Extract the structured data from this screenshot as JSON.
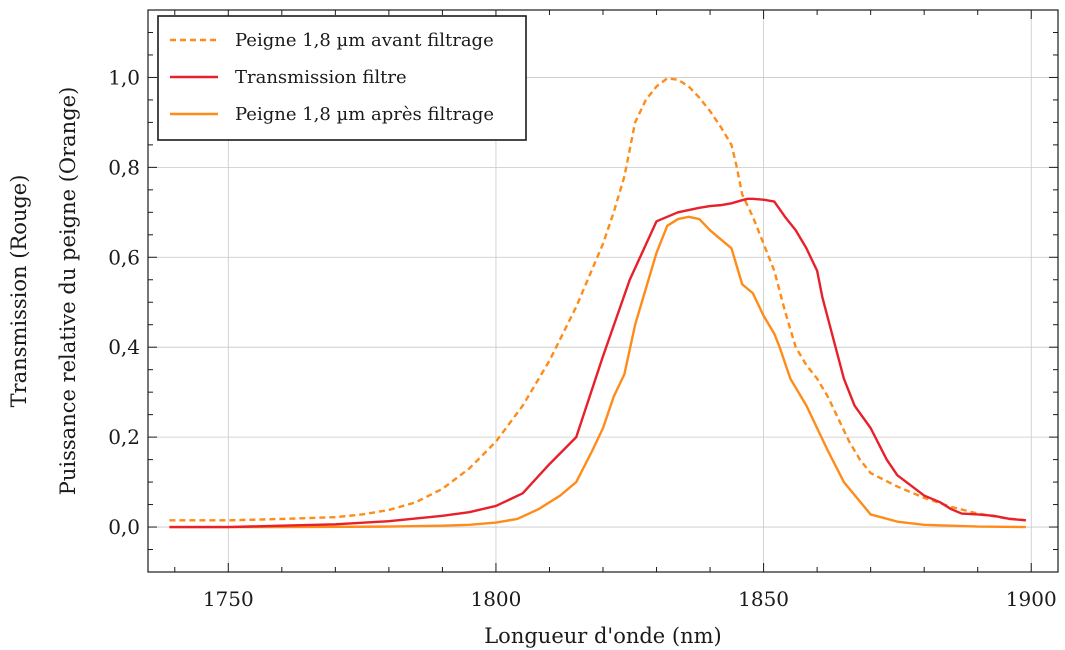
{
  "chart_data": {
    "type": "line",
    "xlabel": "Longueur d'onde (nm)",
    "ylabel_line1": "Transmission (Rouge)",
    "ylabel_line2": "Puissance relative du peigne (Orange)",
    "xlim": [
      1735,
      1905
    ],
    "ylim": [
      -0.1,
      1.15
    ],
    "xticks": [
      1750,
      1800,
      1850,
      1900
    ],
    "xtick_labels": [
      "1750",
      "1800",
      "1850",
      "1900"
    ],
    "yticks": [
      0.0,
      0.2,
      0.4,
      0.6,
      0.8,
      1.0
    ],
    "ytick_labels": [
      "0,0",
      "0,2",
      "0,4",
      "0,6",
      "0,8",
      "1,0"
    ],
    "x_minor_step": 10,
    "y_minor_step": 0.05,
    "grid": true,
    "legend_position": "top-left",
    "series": [
      {
        "name": "Peigne 1,8 µm avant filtrage",
        "color": "#ff8c1a",
        "dash": "dashed",
        "x": [
          1739,
          1750,
          1760,
          1770,
          1775,
          1780,
          1785,
          1790,
          1795,
          1800,
          1805,
          1810,
          1815,
          1820,
          1822,
          1824,
          1826,
          1828,
          1830,
          1832,
          1834,
          1836,
          1838,
          1840,
          1842,
          1844,
          1845,
          1846,
          1848,
          1850,
          1852,
          1854,
          1856,
          1858,
          1860,
          1862,
          1864,
          1866,
          1868,
          1870,
          1875,
          1880,
          1885,
          1890,
          1895,
          1899
        ],
        "y": [
          0.015,
          0.015,
          0.018,
          0.022,
          0.028,
          0.038,
          0.055,
          0.085,
          0.13,
          0.19,
          0.27,
          0.37,
          0.49,
          0.63,
          0.7,
          0.78,
          0.9,
          0.95,
          0.98,
          0.998,
          0.995,
          0.98,
          0.955,
          0.925,
          0.89,
          0.85,
          0.8,
          0.74,
          0.69,
          0.63,
          0.57,
          0.48,
          0.4,
          0.36,
          0.33,
          0.29,
          0.24,
          0.19,
          0.15,
          0.12,
          0.09,
          0.065,
          0.045,
          0.03,
          0.02,
          0.015
        ]
      },
      {
        "name": "Transmission filtre",
        "color": "#e8202a",
        "dash": "solid",
        "x": [
          1739,
          1750,
          1760,
          1770,
          1780,
          1790,
          1795,
          1800,
          1805,
          1810,
          1815,
          1820,
          1825,
          1830,
          1834,
          1838,
          1840,
          1842,
          1844,
          1846,
          1847,
          1848,
          1850,
          1852,
          1854,
          1856,
          1858,
          1860,
          1861,
          1863,
          1865,
          1867,
          1870,
          1873,
          1875,
          1880,
          1883,
          1885,
          1887,
          1890,
          1893,
          1896,
          1899
        ],
        "y": [
          0.0,
          0.0,
          0.003,
          0.006,
          0.013,
          0.025,
          0.033,
          0.047,
          0.075,
          0.14,
          0.2,
          0.38,
          0.55,
          0.68,
          0.7,
          0.71,
          0.714,
          0.716,
          0.72,
          0.727,
          0.73,
          0.73,
          0.728,
          0.724,
          0.69,
          0.66,
          0.62,
          0.57,
          0.51,
          0.42,
          0.33,
          0.27,
          0.22,
          0.15,
          0.115,
          0.07,
          0.055,
          0.04,
          0.03,
          0.028,
          0.025,
          0.018,
          0.015
        ]
      },
      {
        "name": "Peigne 1,8 µm après filtrage",
        "color": "#ff8c1a",
        "dash": "solid",
        "x": [
          1739,
          1760,
          1780,
          1790,
          1795,
          1800,
          1804,
          1808,
          1812,
          1815,
          1818,
          1820,
          1822,
          1824,
          1826,
          1828,
          1830,
          1832,
          1834,
          1836,
          1838,
          1840,
          1842,
          1844,
          1845,
          1846,
          1848,
          1850,
          1852,
          1853,
          1855,
          1858,
          1862,
          1865,
          1870,
          1875,
          1880,
          1890,
          1899
        ],
        "y": [
          0.0,
          0.0,
          0.001,
          0.003,
          0.005,
          0.01,
          0.018,
          0.04,
          0.07,
          0.1,
          0.17,
          0.22,
          0.29,
          0.34,
          0.45,
          0.53,
          0.61,
          0.67,
          0.685,
          0.69,
          0.685,
          0.66,
          0.64,
          0.62,
          0.58,
          0.54,
          0.52,
          0.47,
          0.43,
          0.4,
          0.33,
          0.27,
          0.17,
          0.1,
          0.028,
          0.012,
          0.005,
          0.001,
          0.0
        ]
      }
    ]
  }
}
